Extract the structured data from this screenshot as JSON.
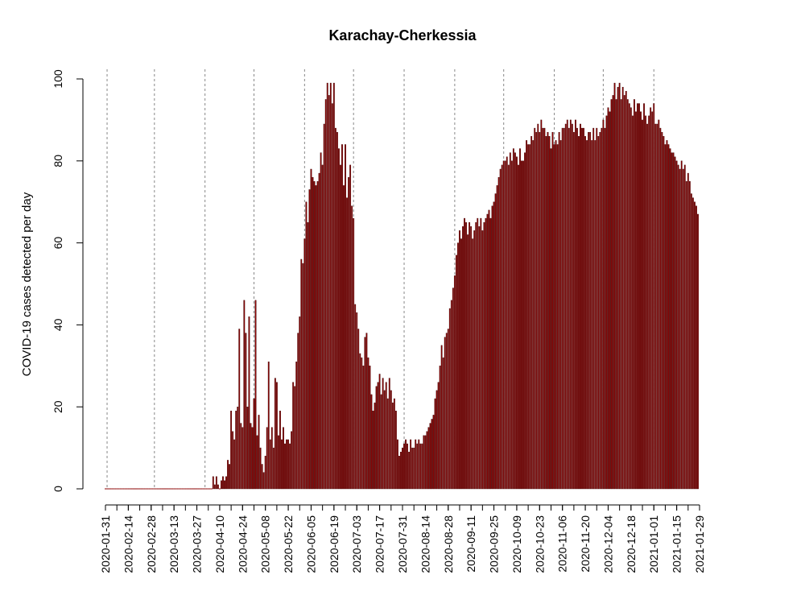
{
  "chart_data": {
    "type": "bar",
    "title": "Karachay-Cherkessia",
    "ylabel": "COVID-19 cases detected per day",
    "xlabel": "",
    "ylim": [
      0,
      100
    ],
    "yticks": [
      0,
      20,
      40,
      60,
      80,
      100
    ],
    "x_start": "2020-01-31",
    "x_end": "2021-01-29",
    "xtick_labels": [
      "2020-01-31",
      "2020-02-14",
      "2020-02-28",
      "2020-03-13",
      "2020-03-27",
      "2020-04-10",
      "2020-04-24",
      "2020-05-08",
      "2020-05-22",
      "2020-06-05",
      "2020-06-19",
      "2020-07-03",
      "2020-07-17",
      "2020-07-31",
      "2020-08-14",
      "2020-08-28",
      "2020-09-11",
      "2020-09-25",
      "2020-10-09",
      "2020-10-23",
      "2020-11-06",
      "2020-11-20",
      "2020-12-04",
      "2020-12-18",
      "2021-01-01",
      "2021-01-15",
      "2021-01-29"
    ],
    "month_gridlines": [
      "2020-02-01",
      "2020-03-01",
      "2020-04-01",
      "2020-05-01",
      "2020-06-01",
      "2020-07-01",
      "2020-08-01",
      "2020-09-01",
      "2020-10-01",
      "2020-11-01",
      "2020-12-01",
      "2021-01-01"
    ],
    "bar_color": "#8B0000",
    "series_start_date": "2020-01-31",
    "values": [
      0,
      0,
      0,
      0,
      0,
      0,
      0,
      0,
      0,
      0,
      0,
      0,
      0,
      0,
      0,
      0,
      0,
      0,
      0,
      0,
      0,
      0,
      0,
      0,
      0,
      0,
      0,
      0,
      0,
      0,
      0,
      0,
      0,
      0,
      0,
      0,
      0,
      0,
      0,
      0,
      0,
      0,
      0,
      0,
      0,
      0,
      0,
      0,
      0,
      0,
      0,
      0,
      0,
      0,
      0,
      0,
      0,
      0,
      0,
      0,
      0,
      0,
      0,
      0,
      0,
      0,
      3,
      1,
      3,
      1,
      0,
      2,
      3,
      2,
      3,
      7,
      6,
      19,
      14,
      12,
      19,
      20,
      39,
      16,
      15,
      46,
      38,
      20,
      42,
      16,
      15,
      22,
      46,
      13,
      18,
      10,
      6,
      4,
      8,
      15,
      31,
      12,
      15,
      10,
      27,
      26,
      13,
      19,
      12,
      15,
      11,
      12,
      12,
      11,
      14,
      26,
      25,
      31,
      38,
      42,
      56,
      55,
      61,
      70,
      65,
      73,
      78,
      76,
      75,
      74,
      75,
      77,
      82,
      79,
      89,
      95,
      99,
      96,
      99,
      94,
      99,
      88,
      87,
      83,
      79,
      84,
      74,
      84,
      71,
      76,
      79,
      69,
      66,
      45,
      43,
      39,
      33,
      32,
      30,
      37,
      38,
      32,
      30,
      23,
      19,
      21,
      25,
      26,
      28,
      23,
      27,
      24,
      26,
      22,
      27,
      24,
      21,
      22,
      19,
      12,
      8,
      9,
      10,
      11,
      12,
      11,
      9,
      12,
      10,
      10,
      12,
      11,
      12,
      11,
      11,
      13,
      13,
      14,
      15,
      16,
      17,
      18,
      22,
      24,
      26,
      30,
      35,
      32,
      37,
      38,
      39,
      44,
      46,
      49,
      52,
      57,
      60,
      63,
      61,
      64,
      66,
      65,
      62,
      65,
      64,
      61,
      63,
      65,
      66,
      64,
      66,
      63,
      65,
      66,
      67,
      68,
      66,
      69,
      70,
      72,
      74,
      76,
      78,
      79,
      80,
      80,
      81,
      79,
      82,
      80,
      83,
      82,
      81,
      79,
      83,
      80,
      80,
      82,
      85,
      84,
      84,
      86,
      85,
      88,
      87,
      89,
      87,
      90,
      88,
      88,
      86,
      87,
      86,
      83,
      87,
      84,
      85,
      84,
      87,
      85,
      88,
      88,
      89,
      90,
      88,
      90,
      89,
      87,
      90,
      88,
      86,
      89,
      88,
      88,
      86,
      85,
      87,
      87,
      85,
      88,
      85,
      88,
      86,
      87,
      88,
      90,
      88,
      91,
      93,
      92,
      95,
      96,
      99,
      95,
      98,
      99,
      95,
      98,
      96,
      97,
      95,
      94,
      93,
      91,
      95,
      92,
      94,
      94,
      92,
      90,
      94,
      91,
      89,
      91,
      93,
      92,
      94,
      89,
      89,
      90,
      88,
      87,
      86,
      84,
      85,
      84,
      83,
      82,
      82,
      81,
      80,
      79,
      78,
      80,
      78,
      79,
      75,
      77,
      75,
      72,
      71,
      70,
      69,
      67
    ]
  }
}
